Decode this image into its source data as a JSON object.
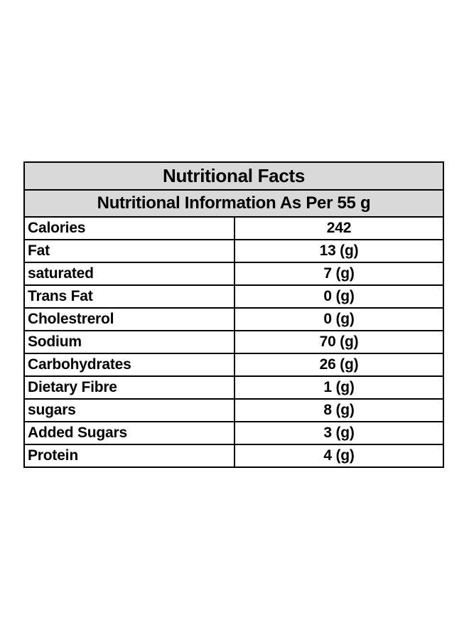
{
  "table": {
    "title": "Nutritional Facts",
    "subtitle": "Nutritional Information As Per 55 g",
    "header_background": "#d9d9d9",
    "border_color": "#000000",
    "rows": [
      {
        "label": "Calories",
        "value": "242"
      },
      {
        "label": "Fat",
        "value": "13 (g)"
      },
      {
        "label": "saturated",
        "value": "7 (g)"
      },
      {
        "label": "Trans Fat",
        "value": "0 (g)"
      },
      {
        "label": "Cholestrerol",
        "value": "0 (g)"
      },
      {
        "label": "Sodium",
        "value": "70 (g)"
      },
      {
        "label": "Carbohydrates",
        "value": "26 (g)"
      },
      {
        "label": "Dietary Fibre",
        "value": "1 (g)"
      },
      {
        "label": "sugars",
        "value": "8 (g)"
      },
      {
        "label": "Added Sugars",
        "value": "3 (g)"
      },
      {
        "label": "Protein",
        "value": "4 (g)"
      }
    ]
  }
}
